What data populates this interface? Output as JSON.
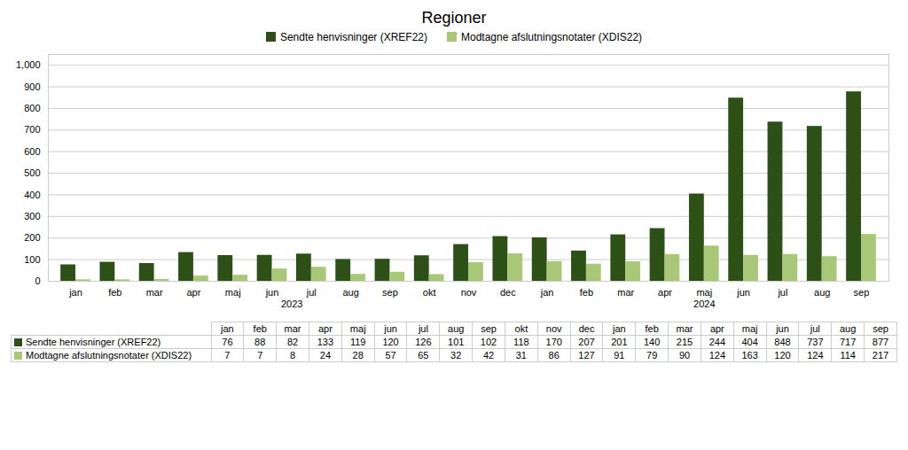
{
  "chart_data": {
    "type": "bar",
    "title": "Regioner",
    "categories": [
      "jan",
      "feb",
      "mar",
      "apr",
      "maj",
      "jun",
      "jul",
      "aug",
      "sep",
      "okt",
      "nov",
      "dec",
      "jan",
      "feb",
      "mar",
      "apr",
      "maj",
      "jun",
      "jul",
      "aug",
      "sep"
    ],
    "category_groups": [
      {
        "label": "2023",
        "size": 12
      },
      {
        "label": "2024",
        "size": 9
      }
    ],
    "series": [
      {
        "name": "Sendte henvisninger (XREF22)",
        "color": "#2d5016",
        "values": [
          76,
          88,
          82,
          133,
          119,
          120,
          126,
          101,
          102,
          118,
          170,
          207,
          201,
          140,
          215,
          244,
          404,
          848,
          737,
          717,
          877
        ]
      },
      {
        "name": "Modtagne afslutningsnotater (XDIS22)",
        "color": "#a8c878",
        "values": [
          7,
          7,
          8,
          24,
          28,
          57,
          65,
          32,
          42,
          31,
          86,
          127,
          91,
          79,
          90,
          124,
          163,
          120,
          124,
          114,
          217
        ]
      }
    ],
    "ylim": [
      0,
      1050
    ],
    "yticks": [
      0,
      100,
      200,
      300,
      400,
      500,
      600,
      700,
      800,
      900,
      1000
    ],
    "grid": true,
    "legend": "top"
  }
}
